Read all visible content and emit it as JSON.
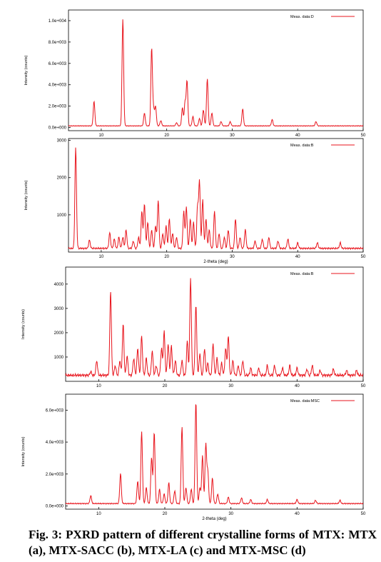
{
  "caption": "Fig. 3: PXRD pattern of different crystalline forms of MTX: MTX (a), MTX-SACC (b), MTX-LA (c) and MTX-MSC (d)",
  "colors": {
    "trace": "#e8141c",
    "axis": "#000000",
    "frame": "#000000"
  },
  "chart_data": [
    {
      "type": "line",
      "legend": "Meas. data:D",
      "legend_placement": "top-right",
      "xlabel": "",
      "ylabel": "Intensity (counts)",
      "xlim": [
        5,
        50
      ],
      "ylim": [
        -300,
        11000
      ],
      "xticks": [
        10,
        20,
        30,
        40,
        50
      ],
      "yticks": [
        {
          "v": 0,
          "label": "0.0e+000"
        },
        {
          "v": 2000,
          "label": "2.0e+003"
        },
        {
          "v": 4000,
          "label": "4.0e+003"
        },
        {
          "v": 6000,
          "label": "6.0e+003"
        },
        {
          "v": 8000,
          "label": "8.0e+003"
        },
        {
          "v": 10000,
          "label": "1.0e+004"
        }
      ],
      "baseline": 150,
      "peaks": [
        [
          8.9,
          2300
        ],
        [
          13.3,
          10000
        ],
        [
          16.6,
          1200
        ],
        [
          17.7,
          7300
        ],
        [
          18.0,
          1500
        ],
        [
          18.3,
          1800
        ],
        [
          19.1,
          500
        ],
        [
          21.5,
          300
        ],
        [
          22.4,
          1700
        ],
        [
          22.8,
          2200
        ],
        [
          23.1,
          4200
        ],
        [
          24.0,
          900
        ],
        [
          25.0,
          700
        ],
        [
          25.6,
          1500
        ],
        [
          26.2,
          4400
        ],
        [
          26.9,
          1200
        ],
        [
          28.3,
          400
        ],
        [
          29.7,
          400
        ],
        [
          31.6,
          1600
        ],
        [
          36.1,
          600
        ],
        [
          42.8,
          400
        ]
      ],
      "peak_width": 0.12
    },
    {
      "type": "line",
      "legend": "Meas. data:B",
      "legend_placement": "top-right",
      "xlabel": "2-theta (deg)",
      "ylabel": "Intensity (counts)",
      "xlim": [
        5,
        50
      ],
      "ylim": [
        0,
        3050
      ],
      "xticks": [
        10,
        20,
        30,
        40,
        50
      ],
      "yticks": [
        {
          "v": 1000,
          "label": "1000"
        },
        {
          "v": 2000,
          "label": "2000"
        },
        {
          "v": 3000,
          "label": "3000"
        }
      ],
      "baseline": 100,
      "peaks": [
        [
          6.1,
          2700
        ],
        [
          8.2,
          220
        ],
        [
          11.3,
          420
        ],
        [
          12.0,
          250
        ],
        [
          12.7,
          300
        ],
        [
          13.3,
          300
        ],
        [
          13.8,
          500
        ],
        [
          14.9,
          200
        ],
        [
          15.7,
          300
        ],
        [
          16.2,
          1000
        ],
        [
          16.6,
          1200
        ],
        [
          17.1,
          700
        ],
        [
          17.7,
          500
        ],
        [
          18.3,
          600
        ],
        [
          18.7,
          1300
        ],
        [
          19.4,
          400
        ],
        [
          19.9,
          600
        ],
        [
          20.4,
          800
        ],
        [
          20.9,
          400
        ],
        [
          21.5,
          300
        ],
        [
          22.6,
          1000
        ],
        [
          23.0,
          1100
        ],
        [
          23.6,
          800
        ],
        [
          24.1,
          700
        ],
        [
          24.7,
          1100
        ],
        [
          25.0,
          1800
        ],
        [
          25.5,
          1300
        ],
        [
          26.0,
          800
        ],
        [
          26.5,
          500
        ],
        [
          27.3,
          1000
        ],
        [
          28.0,
          400
        ],
        [
          28.8,
          300
        ],
        [
          29.4,
          500
        ],
        [
          30.5,
          800
        ],
        [
          31.2,
          300
        ],
        [
          32.0,
          500
        ],
        [
          33.5,
          200
        ],
        [
          34.6,
          250
        ],
        [
          35.6,
          300
        ],
        [
          37.0,
          200
        ],
        [
          38.5,
          250
        ],
        [
          40.0,
          150
        ],
        [
          43.0,
          150
        ],
        [
          46.5,
          150
        ]
      ],
      "peak_width": 0.12
    },
    {
      "type": "line",
      "legend": "Meas. data:B",
      "legend_placement": "top-right",
      "xlabel": "",
      "ylabel": "Intensity (counts)",
      "xlim": [
        5,
        50
      ],
      "ylim": [
        0,
        4700
      ],
      "xticks": [
        10,
        20,
        30,
        40,
        50
      ],
      "yticks": [
        {
          "v": 1000,
          "label": "1000"
        },
        {
          "v": 2000,
          "label": "2000"
        },
        {
          "v": 3000,
          "label": "3000"
        },
        {
          "v": 4000,
          "label": "4000"
        }
      ],
      "baseline": 250,
      "peaks": [
        [
          8.8,
          150
        ],
        [
          9.7,
          600
        ],
        [
          11.8,
          3500
        ],
        [
          12.5,
          400
        ],
        [
          13.2,
          600
        ],
        [
          13.7,
          2100
        ],
        [
          14.3,
          800
        ],
        [
          15.3,
          700
        ],
        [
          15.9,
          1100
        ],
        [
          16.5,
          1600
        ],
        [
          17.2,
          700
        ],
        [
          18.1,
          1000
        ],
        [
          18.7,
          400
        ],
        [
          19.5,
          1100
        ],
        [
          19.9,
          1800
        ],
        [
          20.5,
          1300
        ],
        [
          21.0,
          1200
        ],
        [
          21.6,
          600
        ],
        [
          22.6,
          600
        ],
        [
          23.4,
          1400
        ],
        [
          23.9,
          4000
        ],
        [
          24.7,
          2900
        ],
        [
          25.3,
          900
        ],
        [
          26.0,
          1100
        ],
        [
          26.5,
          500
        ],
        [
          27.3,
          1300
        ],
        [
          27.9,
          700
        ],
        [
          28.6,
          500
        ],
        [
          29.2,
          1100
        ],
        [
          29.6,
          1600
        ],
        [
          30.3,
          600
        ],
        [
          31.1,
          400
        ],
        [
          31.8,
          600
        ],
        [
          33.0,
          300
        ],
        [
          34.2,
          300
        ],
        [
          35.5,
          400
        ],
        [
          36.6,
          400
        ],
        [
          37.8,
          300
        ],
        [
          38.9,
          400
        ],
        [
          40.0,
          300
        ],
        [
          41.5,
          250
        ],
        [
          42.3,
          400
        ],
        [
          43.5,
          200
        ],
        [
          45.5,
          250
        ],
        [
          47.5,
          200
        ],
        [
          49.0,
          200
        ]
      ],
      "peak_width": 0.12
    },
    {
      "type": "line",
      "legend": "Meas. data:MSC",
      "legend_placement": "top-right",
      "xlabel": "2-theta (deg)",
      "ylabel": "Intensity (counts)",
      "xlim": [
        5,
        50
      ],
      "ylim": [
        -200,
        7000
      ],
      "xticks": [
        10,
        20,
        30,
        40,
        50
      ],
      "yticks": [
        {
          "v": 0,
          "label": "0.0e+000"
        },
        {
          "v": 2000,
          "label": "2.0e+003"
        },
        {
          "v": 4000,
          "label": "4.0e+003"
        },
        {
          "v": 6000,
          "label": "6.0e+003"
        }
      ],
      "baseline": 150,
      "peaks": [
        [
          8.8,
          500
        ],
        [
          13.3,
          1900
        ],
        [
          15.9,
          1400
        ],
        [
          16.5,
          4500
        ],
        [
          17.2,
          1000
        ],
        [
          18.0,
          2900
        ],
        [
          18.4,
          4500
        ],
        [
          19.2,
          900
        ],
        [
          19.9,
          600
        ],
        [
          20.6,
          1300
        ],
        [
          21.5,
          800
        ],
        [
          22.6,
          4800
        ],
        [
          23.2,
          1000
        ],
        [
          24.0,
          900
        ],
        [
          24.7,
          6400
        ],
        [
          25.3,
          1000
        ],
        [
          25.7,
          3000
        ],
        [
          26.2,
          3700
        ],
        [
          26.5,
          2000
        ],
        [
          27.2,
          1600
        ],
        [
          28.0,
          600
        ],
        [
          29.6,
          400
        ],
        [
          31.6,
          350
        ],
        [
          33.0,
          250
        ],
        [
          35.5,
          250
        ],
        [
          40.0,
          250
        ],
        [
          42.8,
          200
        ],
        [
          46.5,
          200
        ]
      ],
      "peak_width": 0.12
    }
  ]
}
